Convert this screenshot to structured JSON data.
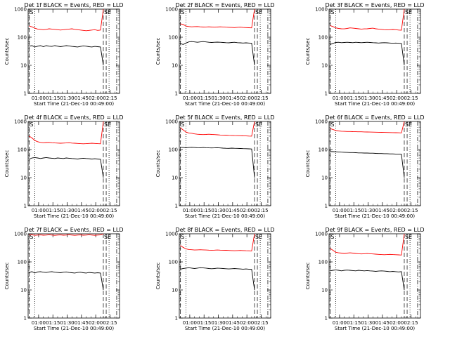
{
  "colors": {
    "events": "#000000",
    "lld": "#ff0000",
    "axes": "#000000",
    "background": "#ffffff"
  },
  "marker_labels": {
    "start": "S",
    "end": "SE"
  },
  "chart_data": [
    {
      "type": "line",
      "title": "Det 1f BLACK = Events, RED = LLD",
      "xlabel": "Start Time (21-Dec-10 00:49:00)",
      "ylabel": "Counts/sec",
      "x_ticks": [
        "01:00",
        "01:15",
        "01:30",
        "01:45",
        "02:00",
        "02:15"
      ],
      "y_ticks": [
        "1",
        "10",
        "100",
        "1000"
      ],
      "y_scale": "log",
      "ylim": [
        1,
        1000
      ],
      "xlim": [
        "00:49",
        "02:25"
      ],
      "series": [
        {
          "values": [
            250,
            235,
            210,
            195,
            190,
            185,
            190,
            200,
            195,
            190,
            185,
            180,
            185,
            190,
            195,
            200,
            190,
            185,
            180,
            175,
            170,
            175,
            180,
            185,
            175,
            180,
            1000
          ]
        },
        {
          "values": [
            48,
            50,
            45,
            48,
            50,
            46,
            50,
            48,
            47,
            50,
            48,
            46,
            48,
            50,
            49,
            47,
            46,
            45,
            47,
            49,
            48,
            46,
            45,
            47,
            46,
            45,
            10
          ]
        }
      ]
    },
    {
      "type": "line",
      "title": "Det 2f BLACK = Events, RED = LLD",
      "xlabel": "Start Time (21-Dec-10 00:49:00)",
      "ylabel": "Counts/sec",
      "x_ticks": [
        "01:00",
        "01:15",
        "01:30",
        "01:45",
        "02:00",
        "02:15"
      ],
      "y_ticks": [
        "1",
        "10",
        "100",
        "1000"
      ],
      "y_scale": "log",
      "ylim": [
        1,
        1000
      ],
      "xlim": [
        "00:49",
        "02:25"
      ],
      "series": [
        {
          "values": [
            300,
            285,
            250,
            240,
            235,
            238,
            240,
            235,
            230,
            232,
            235,
            230,
            228,
            230,
            235,
            232,
            228,
            225,
            222,
            220,
            225,
            228,
            222,
            220,
            218,
            215,
            1000
          ]
        },
        {
          "values": [
            60,
            55,
            62,
            68,
            70,
            68,
            66,
            68,
            70,
            68,
            66,
            65,
            66,
            67,
            66,
            65,
            64,
            63,
            65,
            66,
            64,
            63,
            62,
            63,
            62,
            61,
            10
          ]
        }
      ]
    },
    {
      "type": "line",
      "title": "Det 3f BLACK = Events, RED = LLD",
      "xlabel": "Start Time (21-Dec-10 00:49:00)",
      "ylabel": "Counts/sec",
      "x_ticks": [
        "01:00",
        "01:15",
        "01:30",
        "01:45",
        "02:00",
        "02:15"
      ],
      "y_ticks": [
        "1",
        "10",
        "100",
        "1000"
      ],
      "y_scale": "log",
      "ylim": [
        1,
        1000
      ],
      "xlim": [
        "00:49",
        "02:25"
      ],
      "series": [
        {
          "values": [
            260,
            240,
            215,
            205,
            200,
            198,
            205,
            215,
            210,
            205,
            200,
            195,
            198,
            200,
            205,
            210,
            200,
            195,
            190,
            185,
            182,
            185,
            188,
            185,
            180,
            178,
            1000
          ]
        },
        {
          "values": [
            55,
            60,
            65,
            66,
            64,
            65,
            66,
            65,
            64,
            66,
            65,
            64,
            65,
            66,
            65,
            64,
            63,
            62,
            63,
            64,
            63,
            62,
            61,
            62,
            61,
            60,
            10
          ]
        }
      ]
    },
    {
      "type": "line",
      "title": "Det 4f BLACK = Events, RED = LLD",
      "xlabel": "Start Time (21-Dec-10 00:49:00)",
      "ylabel": "Counts/sec",
      "x_ticks": [
        "01:00",
        "01:15",
        "01:30",
        "01:45",
        "02:00",
        "02:15"
      ],
      "y_ticks": [
        "1",
        "10",
        "100",
        "1000"
      ],
      "y_scale": "log",
      "ylim": [
        1,
        1000
      ],
      "xlim": [
        "00:49",
        "02:25"
      ],
      "series": [
        {
          "values": [
            300,
            260,
            210,
            190,
            180,
            175,
            178,
            180,
            175,
            172,
            170,
            168,
            170,
            172,
            175,
            170,
            168,
            165,
            162,
            160,
            162,
            165,
            168,
            165,
            162,
            160,
            1000
          ]
        },
        {
          "values": [
            45,
            50,
            52,
            50,
            48,
            50,
            52,
            50,
            49,
            48,
            50,
            49,
            48,
            50,
            49,
            48,
            47,
            46,
            48,
            49,
            48,
            47,
            46,
            47,
            46,
            45,
            10
          ]
        }
      ]
    },
    {
      "type": "line",
      "title": "Det 5f BLACK = Events, RED = LLD",
      "xlabel": "Start Time (21-Dec-10 00:49:00)",
      "ylabel": "Counts/sec",
      "x_ticks": [
        "01:00",
        "01:15",
        "01:30",
        "01:45",
        "02:00",
        "02:15"
      ],
      "y_ticks": [
        "1",
        "10",
        "100",
        "1000"
      ],
      "y_scale": "log",
      "ylim": [
        1,
        1000
      ],
      "xlim": [
        "00:49",
        "02:25"
      ],
      "series": [
        {
          "values": [
            600,
            500,
            420,
            390,
            380,
            360,
            350,
            345,
            340,
            345,
            350,
            345,
            340,
            335,
            330,
            328,
            325,
            320,
            318,
            315,
            312,
            310,
            308,
            305,
            302,
            300,
            1000
          ]
        },
        {
          "values": [
            120,
            118,
            115,
            118,
            120,
            118,
            116,
            115,
            118,
            116,
            115,
            114,
            115,
            116,
            114,
            112,
            111,
            110,
            112,
            111,
            110,
            109,
            108,
            107,
            106,
            105,
            10
          ]
        }
      ]
    },
    {
      "type": "line",
      "title": "Det 6f BLACK = Events, RED = LLD",
      "xlabel": "Start Time (21-Dec-10 00:49:00)",
      "ylabel": "Counts/sec",
      "x_ticks": [
        "01:00",
        "01:15",
        "01:30",
        "01:45",
        "02:00",
        "02:15"
      ],
      "y_ticks": [
        "1",
        "10",
        "100",
        "1000"
      ],
      "y_scale": "log",
      "ylim": [
        1,
        1000
      ],
      "xlim": [
        "00:49",
        "02:25"
      ],
      "series": [
        {
          "values": [
            560,
            520,
            480,
            460,
            450,
            445,
            440,
            438,
            435,
            432,
            430,
            428,
            425,
            422,
            420,
            418,
            415,
            412,
            410,
            408,
            405,
            402,
            400,
            398,
            395,
            392,
            1000
          ]
        },
        {
          "values": [
            85,
            84,
            83,
            82,
            81,
            80,
            79,
            78,
            78,
            77,
            76,
            76,
            75,
            75,
            74,
            74,
            73,
            72,
            72,
            71,
            71,
            70,
            70,
            69,
            69,
            68,
            10
          ]
        }
      ]
    },
    {
      "type": "line",
      "title": "Det 7f BLACK = Events, RED = LLD",
      "xlabel": "Start Time (21-Dec-10 00:49:00)",
      "ylabel": "Counts/sec",
      "x_ticks": [
        "01:00",
        "01:15",
        "01:30",
        "01:45",
        "02:00",
        "02:15"
      ],
      "y_ticks": [
        "1",
        "10",
        "100",
        "1000"
      ],
      "y_scale": "log",
      "ylim": [
        1,
        1000
      ],
      "xlim": [
        "00:49",
        "02:25"
      ],
      "series": [
        {
          "values": [
            900,
            920,
            880,
            900,
            910,
            890,
            900,
            920,
            900,
            880,
            900,
            910,
            890,
            900,
            920,
            900,
            880,
            900,
            910,
            890,
            900,
            920,
            900,
            880,
            900,
            910,
            1000
          ]
        },
        {
          "values": [
            42,
            45,
            40,
            44,
            45,
            43,
            42,
            44,
            45,
            43,
            42,
            41,
            43,
            44,
            42,
            41,
            40,
            42,
            43,
            41,
            40,
            42,
            41,
            40,
            41,
            40,
            10
          ]
        }
      ]
    },
    {
      "type": "line",
      "title": "Det 8f BLACK = Events, RED = LLD",
      "xlabel": "Start Time (21-Dec-10 00:49:00)",
      "ylabel": "Counts/sec",
      "x_ticks": [
        "01:00",
        "01:15",
        "01:30",
        "01:45",
        "02:00",
        "02:15"
      ],
      "y_ticks": [
        "1",
        "10",
        "100",
        "1000"
      ],
      "y_scale": "log",
      "ylim": [
        1,
        1000
      ],
      "xlim": [
        "00:49",
        "02:25"
      ],
      "series": [
        {
          "values": [
            380,
            330,
            290,
            275,
            270,
            265,
            268,
            270,
            268,
            265,
            262,
            260,
            262,
            265,
            262,
            260,
            258,
            255,
            252,
            250,
            252,
            255,
            252,
            250,
            248,
            245,
            1000
          ]
        },
        {
          "values": [
            55,
            58,
            60,
            62,
            60,
            58,
            60,
            62,
            61,
            60,
            58,
            57,
            58,
            60,
            59,
            58,
            57,
            56,
            57,
            58,
            57,
            56,
            55,
            56,
            55,
            54,
            10
          ]
        }
      ]
    },
    {
      "type": "line",
      "title": "Det 9f BLACK = Events, RED = LLD",
      "xlabel": "Start Time (21-Dec-10 00:49:00)",
      "ylabel": "Counts/sec",
      "x_ticks": [
        "01:00",
        "01:15",
        "01:30",
        "01:45",
        "02:00",
        "02:15"
      ],
      "y_ticks": [
        "1",
        "10",
        "100",
        "1000"
      ],
      "y_scale": "log",
      "ylim": [
        1,
        1000
      ],
      "xlim": [
        "00:49",
        "02:25"
      ],
      "series": [
        {
          "values": [
            300,
            260,
            220,
            210,
            205,
            200,
            205,
            210,
            205,
            200,
            195,
            192,
            195,
            198,
            195,
            192,
            188,
            185,
            182,
            180,
            182,
            185,
            182,
            180,
            178,
            175,
            1000
          ]
        },
        {
          "values": [
            48,
            50,
            52,
            50,
            48,
            50,
            51,
            50,
            49,
            48,
            50,
            49,
            48,
            49,
            48,
            47,
            46,
            47,
            48,
            47,
            46,
            45,
            46,
            45,
            44,
            45,
            10
          ]
        }
      ]
    }
  ]
}
